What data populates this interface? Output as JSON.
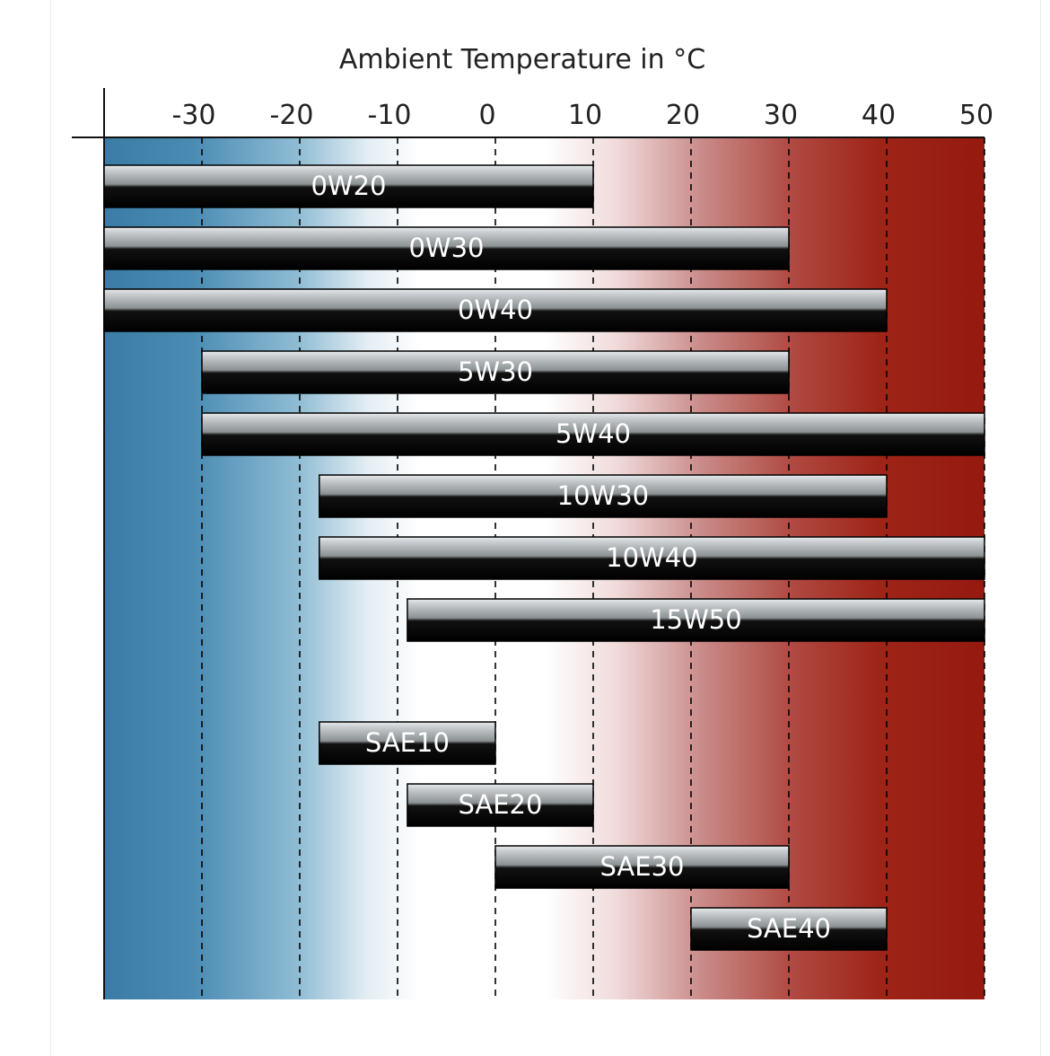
{
  "chart_data": {
    "type": "bar",
    "orientation": "horizontal range",
    "title": "Ambient Temperature in °C",
    "xlim": [
      -40,
      50
    ],
    "xticks": [
      "-30",
      "-20",
      "-10",
      "0",
      "10",
      "20",
      "30",
      "40",
      "50"
    ],
    "x_tick_values": [
      -30,
      -20,
      -10,
      0,
      10,
      20,
      30,
      40,
      50
    ],
    "grid": "vertical dashed lines at ticks",
    "background_gradient": {
      "cold": "#3a7ca5",
      "mid": "#ffffff",
      "hot": "#9a1c12"
    },
    "bar_colors": {
      "top": "#b8bcbf",
      "bottom": "#000000"
    },
    "series": [
      {
        "name": "0W20",
        "start": -40,
        "end": 10
      },
      {
        "name": "0W30",
        "start": -40,
        "end": 30
      },
      {
        "name": "0W40",
        "start": -40,
        "end": 40
      },
      {
        "name": "5W30",
        "start": -30,
        "end": 30
      },
      {
        "name": "5W40",
        "start": -30,
        "end": 50
      },
      {
        "name": "10W30",
        "start": -18,
        "end": 40
      },
      {
        "name": "10W40",
        "start": -18,
        "end": 50
      },
      {
        "name": "15W50",
        "start": -9,
        "end": 50
      },
      {
        "name": "SAE10",
        "start": -18,
        "end": 0
      },
      {
        "name": "SAE20",
        "start": -9,
        "end": 10
      },
      {
        "name": "SAE30",
        "start": 0,
        "end": 30
      },
      {
        "name": "SAE40",
        "start": 20,
        "end": 40
      }
    ]
  }
}
